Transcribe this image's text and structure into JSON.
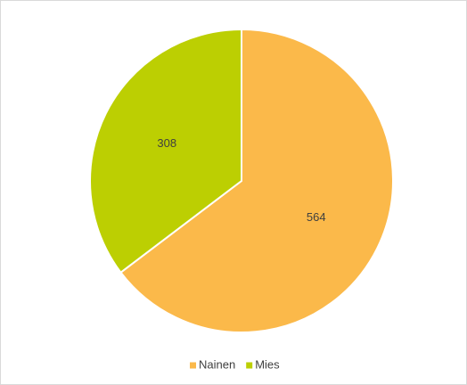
{
  "chart_data": {
    "type": "pie",
    "categories": [
      "Nainen",
      "Mies"
    ],
    "values": [
      564,
      308
    ],
    "colors": [
      "#fbb94a",
      "#bccf02"
    ],
    "legend": "bottom"
  }
}
